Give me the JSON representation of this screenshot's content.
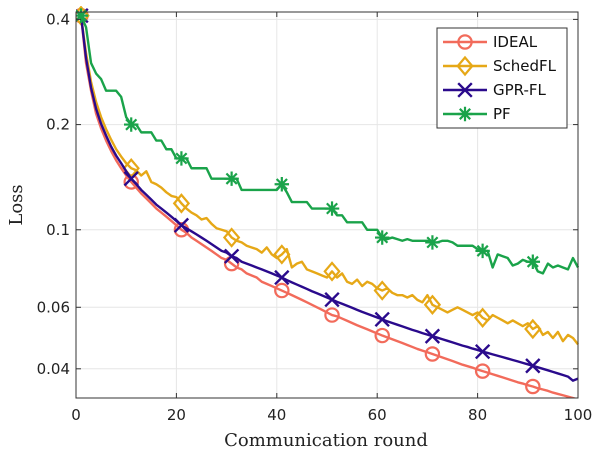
{
  "chart_data": {
    "type": "line",
    "title": "",
    "xlabel": "Communication round",
    "ylabel": "Loss",
    "xlim": [
      0,
      100
    ],
    "ylim": [
      0.033,
      0.42
    ],
    "yscale": "log",
    "grid": true,
    "legend_position": "top-right",
    "x_ticks": [
      0,
      20,
      40,
      60,
      80,
      100
    ],
    "x_tick_labels": [
      "0",
      "20",
      "40",
      "60",
      "80",
      "100"
    ],
    "y_ticks": [
      0.04,
      0.06,
      0.1,
      0.2,
      0.4
    ],
    "y_tick_labels": [
      "0.04",
      "0.06",
      "0.1",
      "0.2",
      "0.4"
    ],
    "x": [
      1,
      2,
      3,
      4,
      5,
      6,
      7,
      8,
      9,
      10,
      11,
      12,
      13,
      14,
      15,
      16,
      17,
      18,
      19,
      20,
      21,
      22,
      23,
      24,
      25,
      26,
      27,
      28,
      29,
      30,
      31,
      32,
      33,
      34,
      35,
      36,
      37,
      38,
      39,
      40,
      41,
      42,
      43,
      44,
      45,
      46,
      47,
      48,
      49,
      50,
      51,
      52,
      53,
      54,
      55,
      56,
      57,
      58,
      59,
      60,
      61,
      62,
      63,
      64,
      65,
      66,
      67,
      68,
      69,
      70,
      71,
      72,
      73,
      74,
      75,
      76,
      77,
      78,
      79,
      80,
      81,
      82,
      83,
      84,
      85,
      86,
      87,
      88,
      89,
      90,
      91,
      92,
      93,
      94,
      95,
      96,
      97,
      98,
      99,
      100
    ],
    "series": [
      {
        "name": "IDEAL",
        "color": "#f26b5b",
        "marker": "circle",
        "values": [
          0.41,
          0.3,
          0.25,
          0.215,
          0.195,
          0.18,
          0.168,
          0.158,
          0.15,
          0.143,
          0.137,
          0.132,
          0.127,
          0.123,
          0.119,
          0.115,
          0.112,
          0.109,
          0.106,
          0.103,
          0.1,
          0.098,
          0.095,
          0.093,
          0.091,
          0.089,
          0.087,
          0.085,
          0.083,
          0.082,
          0.08,
          0.078,
          0.077,
          0.075,
          0.074,
          0.073,
          0.071,
          0.07,
          0.069,
          0.068,
          0.067,
          0.066,
          0.065,
          0.064,
          0.063,
          0.062,
          0.061,
          0.06,
          0.059,
          0.058,
          0.057,
          0.0565,
          0.0557,
          0.0549,
          0.0541,
          0.0533,
          0.0526,
          0.0519,
          0.0512,
          0.0505,
          0.0498,
          0.0492,
          0.0486,
          0.048,
          0.0474,
          0.0468,
          0.0462,
          0.0456,
          0.0451,
          0.0446,
          0.0441,
          0.0436,
          0.0431,
          0.0426,
          0.0421,
          0.0416,
          0.0411,
          0.0407,
          0.0403,
          0.0398,
          0.0394,
          0.039,
          0.0386,
          0.0382,
          0.0378,
          0.0374,
          0.037,
          0.0366,
          0.0363,
          0.0359,
          0.0356,
          0.0352,
          0.0349,
          0.0346,
          0.0342,
          0.0339,
          0.0336,
          0.0333,
          0.033,
          0.0327
        ]
      },
      {
        "name": "SchedFL",
        "color": "#e6a817",
        "marker": "diamond",
        "values": [
          0.41,
          0.32,
          0.265,
          0.232,
          0.21,
          0.194,
          0.181,
          0.17,
          0.162,
          0.155,
          0.15,
          0.148,
          0.143,
          0.147,
          0.137,
          0.135,
          0.132,
          0.128,
          0.125,
          0.124,
          0.119,
          0.115,
          0.112,
          0.11,
          0.107,
          0.108,
          0.104,
          0.101,
          0.1,
          0.099,
          0.095,
          0.093,
          0.092,
          0.09,
          0.089,
          0.088,
          0.086,
          0.089,
          0.085,
          0.083,
          0.085,
          0.088,
          0.078,
          0.08,
          0.081,
          0.077,
          0.076,
          0.075,
          0.074,
          0.073,
          0.076,
          0.073,
          0.075,
          0.071,
          0.07,
          0.072,
          0.069,
          0.071,
          0.07,
          0.068,
          0.067,
          0.068,
          0.066,
          0.065,
          0.065,
          0.064,
          0.065,
          0.063,
          0.062,
          0.065,
          0.061,
          0.06,
          0.059,
          0.058,
          0.059,
          0.06,
          0.059,
          0.058,
          0.057,
          0.058,
          0.056,
          0.055,
          0.057,
          0.056,
          0.055,
          0.054,
          0.055,
          0.054,
          0.053,
          0.054,
          0.052,
          0.053,
          0.05,
          0.051,
          0.049,
          0.051,
          0.048,
          0.05,
          0.049,
          0.047
        ]
      },
      {
        "name": "GPR-FL",
        "color": "#2a0a8c",
        "marker": "x",
        "values": [
          0.41,
          0.31,
          0.255,
          0.222,
          0.201,
          0.186,
          0.173,
          0.163,
          0.155,
          0.147,
          0.14,
          0.135,
          0.13,
          0.126,
          0.122,
          0.118,
          0.115,
          0.112,
          0.109,
          0.106,
          0.103,
          0.101,
          0.099,
          0.097,
          0.095,
          0.093,
          0.091,
          0.089,
          0.087,
          0.086,
          0.084,
          0.083,
          0.081,
          0.08,
          0.079,
          0.078,
          0.077,
          0.076,
          0.075,
          0.074,
          0.073,
          0.0718,
          0.0707,
          0.0697,
          0.0687,
          0.0677,
          0.0667,
          0.0658,
          0.0649,
          0.064,
          0.0631,
          0.0622,
          0.0614,
          0.0606,
          0.0598,
          0.059,
          0.0582,
          0.0575,
          0.0568,
          0.0561,
          0.0554,
          0.0547,
          0.0541,
          0.0535,
          0.0529,
          0.0523,
          0.0517,
          0.0512,
          0.0506,
          0.0501,
          0.0496,
          0.0491,
          0.0486,
          0.0481,
          0.0476,
          0.0471,
          0.0466,
          0.0462,
          0.0457,
          0.0453,
          0.0448,
          0.0444,
          0.044,
          0.0436,
          0.0432,
          0.0428,
          0.0424,
          0.042,
          0.0416,
          0.0412,
          0.0408,
          0.0404,
          0.04,
          0.0396,
          0.0392,
          0.0388,
          0.0384,
          0.038,
          0.037,
          0.0375
        ]
      },
      {
        "name": "PF",
        "color": "#1aa34a",
        "marker": "asterisk",
        "values": [
          0.41,
          0.38,
          0.3,
          0.28,
          0.27,
          0.25,
          0.25,
          0.25,
          0.24,
          0.21,
          0.2,
          0.2,
          0.19,
          0.19,
          0.19,
          0.18,
          0.18,
          0.17,
          0.17,
          0.16,
          0.16,
          0.16,
          0.15,
          0.15,
          0.15,
          0.15,
          0.14,
          0.14,
          0.14,
          0.14,
          0.14,
          0.14,
          0.13,
          0.13,
          0.13,
          0.13,
          0.13,
          0.13,
          0.13,
          0.13,
          0.135,
          0.128,
          0.12,
          0.12,
          0.12,
          0.12,
          0.115,
          0.115,
          0.115,
          0.115,
          0.115,
          0.11,
          0.11,
          0.105,
          0.105,
          0.105,
          0.105,
          0.1,
          0.1,
          0.1,
          0.095,
          0.094,
          0.095,
          0.094,
          0.093,
          0.094,
          0.093,
          0.093,
          0.093,
          0.093,
          0.092,
          0.092,
          0.093,
          0.093,
          0.092,
          0.09,
          0.09,
          0.09,
          0.09,
          0.088,
          0.087,
          0.087,
          0.078,
          0.085,
          0.084,
          0.083,
          0.079,
          0.08,
          0.082,
          0.081,
          0.081,
          0.076,
          0.075,
          0.08,
          0.078,
          0.079,
          0.078,
          0.077,
          0.083,
          0.078
        ]
      }
    ],
    "marker_rounds": [
      1,
      11,
      21,
      31,
      41,
      51,
      61,
      71,
      81,
      91
    ]
  }
}
